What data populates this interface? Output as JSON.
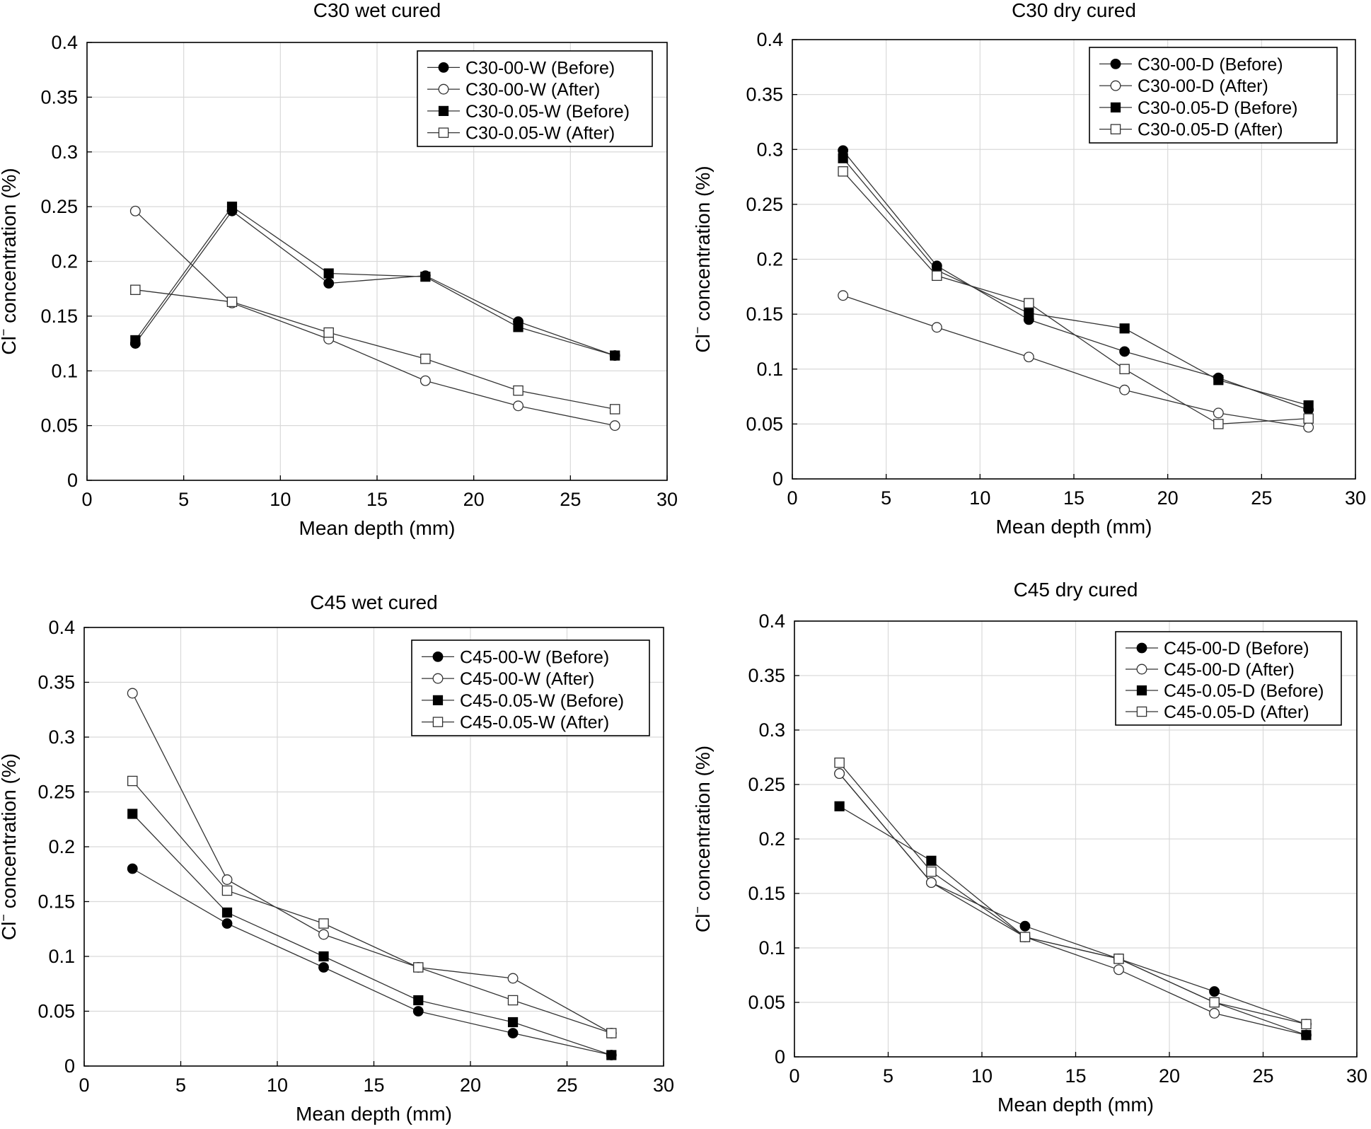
{
  "chart_data": [
    {
      "type": "line",
      "title": "C30 wet cured",
      "xlabel": "Mean depth (mm)",
      "ylabel_main": "Cl",
      "ylabel_sup": "−",
      "ylabel_rest": " concentration (%)",
      "xlim": [
        0,
        30
      ],
      "ylim": [
        0,
        0.4
      ],
      "xticks": [
        "0",
        "5",
        "10",
        "15",
        "20",
        "25",
        "30"
      ],
      "yticks": [
        "0",
        "0.05",
        "0.1",
        "0.15",
        "0.2",
        "0.25",
        "0.3",
        "0.35",
        "0.4"
      ],
      "grid": true,
      "legend_position": "top-right",
      "series": [
        {
          "name": "C30-00-W (Before)",
          "marker": "filled-circle",
          "x": [
            2.5,
            7.5,
            12.5,
            17.5,
            22.3,
            27.3
          ],
          "y": [
            0.125,
            0.246,
            0.18,
            0.187,
            0.145,
            0.114
          ]
        },
        {
          "name": "C30-00-W (After)",
          "marker": "open-circle",
          "x": [
            2.5,
            7.5,
            12.5,
            17.5,
            22.3,
            27.3
          ],
          "y": [
            0.246,
            0.162,
            0.129,
            0.091,
            0.068,
            0.05
          ]
        },
        {
          "name": "C30-0.05-W (Before)",
          "marker": "filled-square",
          "x": [
            2.5,
            7.5,
            12.5,
            17.5,
            22.3,
            27.3
          ],
          "y": [
            0.128,
            0.25,
            0.189,
            0.186,
            0.14,
            0.114
          ]
        },
        {
          "name": "C30-0.05-W (After)",
          "marker": "open-square",
          "x": [
            2.5,
            7.5,
            12.5,
            17.5,
            22.3,
            27.3
          ],
          "y": [
            0.174,
            0.163,
            0.135,
            0.111,
            0.082,
            0.065
          ]
        }
      ]
    },
    {
      "type": "line",
      "title": "C30 dry cured",
      "xlabel": "Mean depth (mm)",
      "ylabel_main": "Cl",
      "ylabel_sup": "−",
      "ylabel_rest": " concentration (%)",
      "xlim": [
        0,
        30
      ],
      "ylim": [
        0,
        0.4
      ],
      "xticks": [
        "0",
        "5",
        "10",
        "15",
        "20",
        "25",
        "30"
      ],
      "yticks": [
        "0",
        "0.05",
        "0.1",
        "0.15",
        "0.2",
        "0.25",
        "0.3",
        "0.35",
        "0.4"
      ],
      "grid": true,
      "legend_position": "top-right",
      "series": [
        {
          "name": "C30-00-D (Before)",
          "marker": "filled-circle",
          "x": [
            2.7,
            7.7,
            12.6,
            17.7,
            22.7,
            27.5
          ],
          "y": [
            0.299,
            0.194,
            0.145,
            0.116,
            0.092,
            0.063
          ]
        },
        {
          "name": "C30-00-D (After)",
          "marker": "open-circle",
          "x": [
            2.7,
            7.7,
            12.6,
            17.7,
            22.7,
            27.5
          ],
          "y": [
            0.167,
            0.138,
            0.111,
            0.081,
            0.06,
            0.047
          ]
        },
        {
          "name": "C30-0.05-D (Before)",
          "marker": "filled-square",
          "x": [
            2.7,
            7.7,
            12.6,
            17.7,
            22.7,
            27.5
          ],
          "y": [
            0.292,
            0.19,
            0.151,
            0.137,
            0.09,
            0.067
          ]
        },
        {
          "name": "C30-0.05-D (After)",
          "marker": "open-square",
          "x": [
            2.7,
            7.7,
            12.6,
            17.7,
            22.7,
            27.5
          ],
          "y": [
            0.28,
            0.185,
            0.16,
            0.1,
            0.05,
            0.055
          ]
        }
      ]
    },
    {
      "type": "line",
      "title": "C45 wet cured",
      "xlabel": "Mean depth (mm)",
      "ylabel_main": "Cl",
      "ylabel_sup": "−",
      "ylabel_rest": " concentration (%)",
      "xlim": [
        0,
        30
      ],
      "ylim": [
        0,
        0.4
      ],
      "xticks": [
        "0",
        "5",
        "10",
        "15",
        "20",
        "25",
        "30"
      ],
      "yticks": [
        "0",
        "0.05",
        "0.1",
        "0.15",
        "0.2",
        "0.25",
        "0.3",
        "0.35",
        "0.4"
      ],
      "grid": true,
      "legend_position": "top-right",
      "series": [
        {
          "name": "C45-00-W (Before)",
          "marker": "filled-circle",
          "x": [
            2.5,
            7.4,
            12.4,
            17.3,
            22.2,
            27.3
          ],
          "y": [
            0.18,
            0.13,
            0.09,
            0.05,
            0.03,
            0.01
          ]
        },
        {
          "name": "C45-00-W (After)",
          "marker": "open-circle",
          "x": [
            2.5,
            7.4,
            12.4,
            17.3,
            22.2,
            27.3
          ],
          "y": [
            0.34,
            0.17,
            0.12,
            0.09,
            0.08,
            0.03
          ]
        },
        {
          "name": "C45-0.05-W (Before)",
          "marker": "filled-square",
          "x": [
            2.5,
            7.4,
            12.4,
            17.3,
            22.2,
            27.3
          ],
          "y": [
            0.23,
            0.14,
            0.1,
            0.06,
            0.04,
            0.01
          ]
        },
        {
          "name": "C45-0.05-W (After)",
          "marker": "open-square",
          "x": [
            2.5,
            7.4,
            12.4,
            17.3,
            22.2,
            27.3
          ],
          "y": [
            0.26,
            0.16,
            0.13,
            0.09,
            0.06,
            0.03
          ]
        }
      ]
    },
    {
      "type": "line",
      "title": "C45 dry cured",
      "xlabel": "Mean depth (mm)",
      "ylabel_main": "Cl",
      "ylabel_sup": "−",
      "ylabel_rest": " concentration (%)",
      "xlim": [
        0,
        30
      ],
      "ylim": [
        0,
        0.4
      ],
      "xticks": [
        "0",
        "5",
        "10",
        "15",
        "20",
        "25",
        "30"
      ],
      "yticks": [
        "0",
        "0.05",
        "0.1",
        "0.15",
        "0.2",
        "0.25",
        "0.3",
        "0.35",
        "0.4"
      ],
      "grid": true,
      "legend_position": "top-right",
      "series": [
        {
          "name": "C45-00-D (Before)",
          "marker": "filled-circle",
          "x": [
            2.4,
            7.3,
            12.3,
            17.3,
            22.4,
            27.3
          ],
          "y": [
            0.26,
            0.16,
            0.12,
            0.09,
            0.06,
            0.03
          ]
        },
        {
          "name": "C45-00-D (After)",
          "marker": "open-circle",
          "x": [
            2.4,
            7.3,
            12.3,
            17.3,
            22.4,
            27.3
          ],
          "y": [
            0.26,
            0.16,
            0.11,
            0.08,
            0.04,
            0.02
          ]
        },
        {
          "name": "C45-0.05-D (Before)",
          "marker": "filled-square",
          "x": [
            2.4,
            7.3,
            12.3,
            17.3,
            22.4,
            27.3
          ],
          "y": [
            0.23,
            0.18,
            0.11,
            0.09,
            0.05,
            0.02
          ]
        },
        {
          "name": "C45-0.05-D (After)",
          "marker": "open-square",
          "x": [
            2.4,
            7.3,
            12.3,
            17.3,
            22.4,
            27.3
          ],
          "y": [
            0.27,
            0.17,
            0.11,
            0.09,
            0.05,
            0.03
          ]
        }
      ]
    }
  ]
}
